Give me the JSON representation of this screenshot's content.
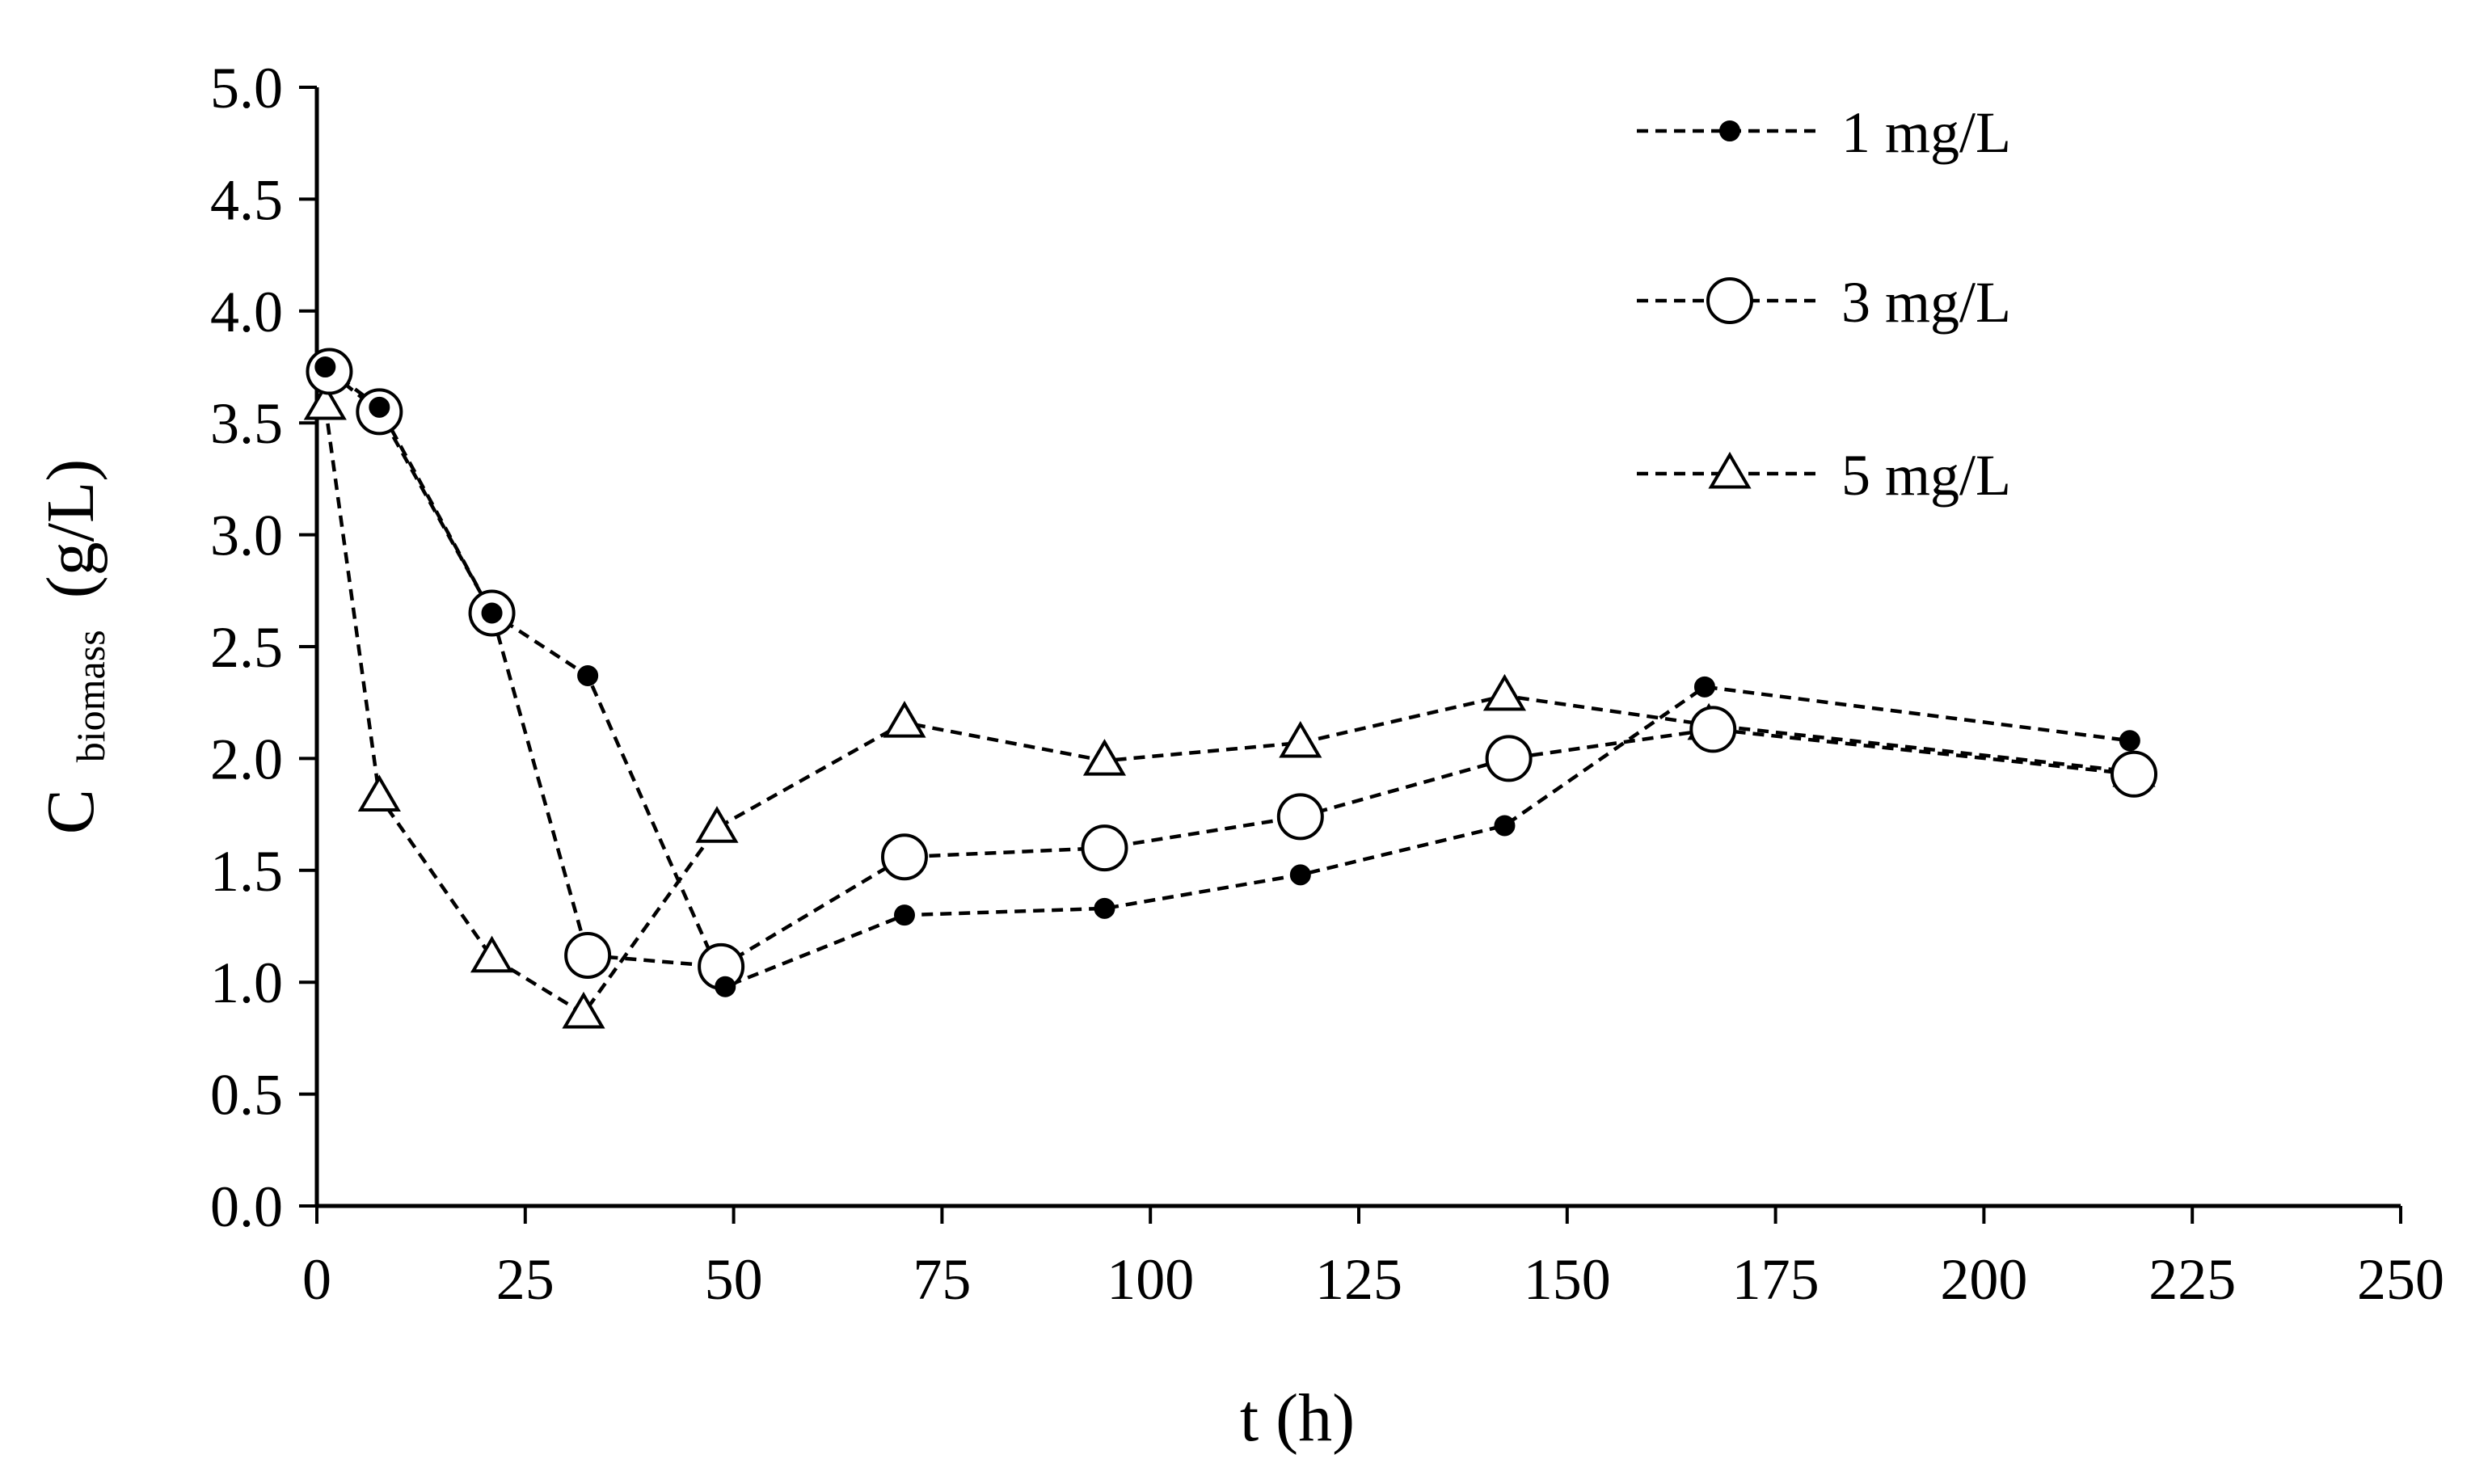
{
  "chart_data": {
    "type": "line",
    "title": "",
    "xlabel": "t (h)",
    "ylabel": {
      "main": "C",
      "subscript": "biomass",
      "unit": "(g/L)"
    },
    "xlim": [
      0,
      250
    ],
    "ylim": [
      0,
      5
    ],
    "xticks": [
      "0",
      "25",
      "50",
      "75",
      "100",
      "125",
      "150",
      "175",
      "200",
      "225",
      "250"
    ],
    "yticks": [
      "0.0",
      "0.5",
      "1.0",
      "1.5",
      "2.0",
      "2.5",
      "3.0",
      "3.5",
      "4.0",
      "4.5",
      "5.0"
    ],
    "grid": false,
    "legend_position": "top-right",
    "series": [
      {
        "name": "1 mg/L",
        "marker": "filled-circle",
        "line": "dashed",
        "points": [
          [
            1,
            3.75
          ],
          [
            7.5,
            3.57
          ],
          [
            21,
            2.65
          ],
          [
            32.5,
            2.37
          ],
          [
            49,
            0.98
          ],
          [
            70.5,
            1.3
          ],
          [
            94.5,
            1.33
          ],
          [
            118,
            1.48
          ],
          [
            142.5,
            1.7
          ],
          [
            166.5,
            2.32
          ],
          [
            217.5,
            2.08
          ]
        ]
      },
      {
        "name": "3 mg/L",
        "marker": "open-circle",
        "line": "dashed",
        "points": [
          [
            1.5,
            3.73
          ],
          [
            7.5,
            3.55
          ],
          [
            21,
            2.65
          ],
          [
            32.5,
            1.12
          ],
          [
            48.5,
            1.07
          ],
          [
            70.5,
            1.56
          ],
          [
            94.5,
            1.6
          ],
          [
            118,
            1.74
          ],
          [
            143,
            2.0
          ],
          [
            167.5,
            2.13
          ],
          [
            218,
            1.93
          ]
        ]
      },
      {
        "name": "5 mg/L",
        "marker": "open-triangle",
        "line": "dashed",
        "points": [
          [
            1,
            3.58
          ],
          [
            7.5,
            1.83
          ],
          [
            21,
            1.11
          ],
          [
            32,
            0.86
          ],
          [
            48,
            1.69
          ],
          [
            70.5,
            2.16
          ],
          [
            94.5,
            1.99
          ],
          [
            118,
            2.07
          ],
          [
            142.5,
            2.28
          ],
          [
            167,
            2.15
          ],
          [
            218,
            1.94
          ]
        ]
      }
    ]
  }
}
